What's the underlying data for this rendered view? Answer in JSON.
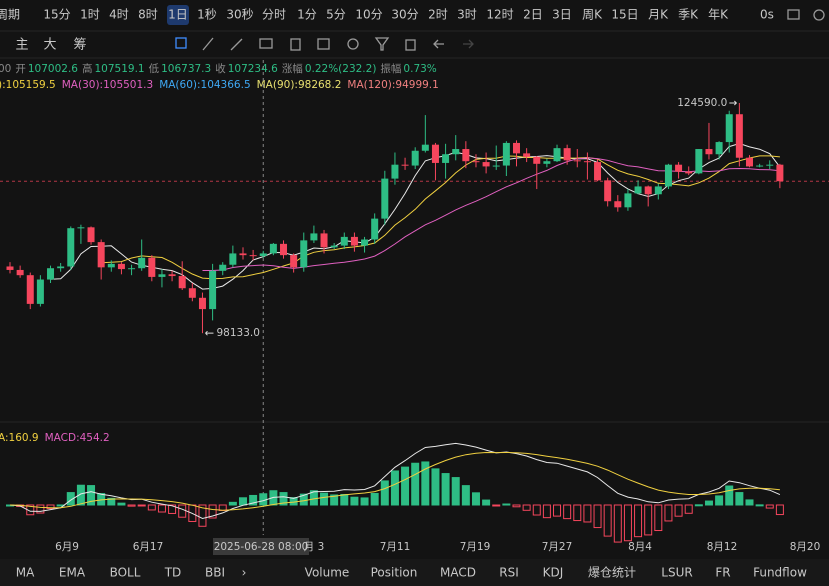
{
  "toolbar": {
    "periods": [
      "周期",
      "15分",
      "1时",
      "4时",
      "8时",
      "1日",
      "1秒",
      "30秒",
      "分时",
      "1分",
      "5分",
      "10分",
      "30分",
      "2时",
      "3时",
      "12时",
      "2日",
      "3日",
      "周K",
      "15日",
      "月K",
      "季K",
      "年K"
    ],
    "selected": 5,
    "timer": "0s"
  },
  "tools": [
    "主",
    "大",
    "筹"
  ],
  "info": {
    "prefix": "00",
    "items": [
      {
        "label": "开",
        "value": "107002.6"
      },
      {
        "label": "高",
        "value": "107519.1"
      },
      {
        "label": "低",
        "value": "106737.3"
      },
      {
        "label": "收",
        "value": "107234.6"
      },
      {
        "label": "涨幅",
        "value": "0.22%(232.2)"
      },
      {
        "label": "振幅",
        "value": "0.73%"
      }
    ]
  },
  "ma_legend": [
    {
      "text": "):105159.5",
      "color": "#f0d040"
    },
    {
      "text": "MA(30):105501.3",
      "color": "#e060c0"
    },
    {
      "text": "MA(60):104366.5",
      "color": "#3fa9f5"
    },
    {
      "text": "MA(90):98268.2",
      "color": "#e8e070"
    },
    {
      "text": "MA(120):94999.1",
      "color": "#f08080"
    }
  ],
  "annotations": {
    "high": "124590.0",
    "low": "98133.0"
  },
  "macd_legend": [
    {
      "text": "A:160.9",
      "color": "#f0d040"
    },
    {
      "text": "MACD:454.2",
      "color": "#e060c0"
    }
  ],
  "x_labels": [
    "6月9",
    "6月17",
    "2025-06-28 08:00",
    "月 3",
    "7月11",
    "7月19",
    "7月27",
    "8月4",
    "8月12",
    "8月20"
  ],
  "tabs": {
    "items": [
      "MA",
      "EMA",
      "BOLL",
      "TD",
      "BBI",
      "›",
      "Volume",
      "Position",
      "MACD",
      "RSI",
      "KDJ",
      "爆仓统计",
      "LSUR",
      "FR",
      "Fundflow"
    ],
    "selected": [
      0,
      8
    ]
  },
  "candles": {
    "up_color": "#2ebd85",
    "down_color": "#f6465d",
    "values": [
      [
        105800,
        106300,
        105000,
        105400
      ],
      [
        105400,
        105900,
        104500,
        104800
      ],
      [
        104800,
        105100,
        100900,
        101500
      ],
      [
        101500,
        104800,
        101200,
        104300
      ],
      [
        104300,
        105900,
        103900,
        105600
      ],
      [
        105600,
        106200,
        105200,
        105800
      ],
      [
        105800,
        110400,
        105400,
        110200
      ],
      [
        110200,
        110600,
        108400,
        110300
      ],
      [
        110300,
        110400,
        108300,
        108600
      ],
      [
        108600,
        108900,
        104300,
        105700
      ],
      [
        105700,
        106500,
        105200,
        106100
      ],
      [
        106100,
        106300,
        104900,
        105500
      ],
      [
        105500,
        106000,
        104800,
        105600
      ],
      [
        105600,
        108900,
        105300,
        106800
      ],
      [
        106800,
        107100,
        104100,
        104600
      ],
      [
        104600,
        105500,
        103400,
        104900
      ],
      [
        104900,
        105300,
        104100,
        104700
      ],
      [
        104700,
        106400,
        103100,
        103300
      ],
      [
        103300,
        103900,
        101800,
        102200
      ],
      [
        102200,
        102800,
        98133,
        100900
      ],
      [
        100900,
        106100,
        99600,
        105300
      ],
      [
        105300,
        106300,
        104800,
        106000
      ],
      [
        106000,
        108200,
        105700,
        107300
      ],
      [
        107300,
        108000,
        106600,
        107100
      ],
      [
        107100,
        107700,
        106500,
        107000
      ],
      [
        107000,
        107600,
        106800,
        107300
      ],
      [
        107300,
        108500,
        107100,
        108400
      ],
      [
        108400,
        108800,
        106700,
        107100
      ],
      [
        107100,
        107300,
        105100,
        105700
      ],
      [
        105700,
        109700,
        105200,
        108800
      ],
      [
        108800,
        110500,
        108500,
        109600
      ],
      [
        109600,
        110000,
        107300,
        108000
      ],
      [
        108000,
        108500,
        107800,
        108200
      ],
      [
        108200,
        109700,
        107800,
        109200
      ],
      [
        109200,
        109700,
        107500,
        108200
      ],
      [
        108200,
        109200,
        107400,
        108900
      ],
      [
        108900,
        111900,
        108400,
        111300
      ],
      [
        111300,
        116800,
        110600,
        115900
      ],
      [
        115900,
        118900,
        115200,
        117500
      ],
      [
        117500,
        118300,
        116900,
        117400
      ],
      [
        117400,
        119500,
        117000,
        119100
      ],
      [
        119100,
        123200,
        118900,
        119800
      ],
      [
        119800,
        120000,
        115700,
        117700
      ],
      [
        117700,
        119900,
        115900,
        118700
      ],
      [
        118700,
        120900,
        118000,
        119300
      ],
      [
        119300,
        120200,
        117100,
        117900
      ],
      [
        117900,
        118700,
        117200,
        117800
      ],
      [
        117800,
        118900,
        116500,
        117300
      ],
      [
        117300,
        119700,
        116900,
        117400
      ],
      [
        117400,
        120200,
        116200,
        120000
      ],
      [
        120000,
        120300,
        117300,
        118800
      ],
      [
        118800,
        119400,
        117800,
        118400
      ],
      [
        118400,
        118500,
        114700,
        117600
      ],
      [
        117600,
        118200,
        117200,
        117900
      ],
      [
        117900,
        119800,
        117800,
        119400
      ],
      [
        119400,
        119800,
        117500,
        118000
      ],
      [
        118000,
        119300,
        117200,
        117900
      ],
      [
        117900,
        118900,
        115800,
        117800
      ],
      [
        117800,
        118100,
        115600,
        115700
      ],
      [
        115700,
        116000,
        112700,
        113300
      ],
      [
        113300,
        114000,
        112100,
        112600
      ],
      [
        112600,
        114700,
        112200,
        114200
      ],
      [
        114200,
        115700,
        114100,
        115000
      ],
      [
        115000,
        115100,
        112700,
        114100
      ],
      [
        114100,
        115300,
        113500,
        115000
      ],
      [
        115000,
        117600,
        114700,
        117500
      ],
      [
        117500,
        117800,
        115900,
        116700
      ],
      [
        116700,
        117300,
        116300,
        116500
      ],
      [
        116500,
        119300,
        116400,
        119300
      ],
      [
        119300,
        122300,
        118100,
        118700
      ],
      [
        118700,
        120200,
        118100,
        120100
      ],
      [
        120100,
        123700,
        118900,
        123300
      ],
      [
        123300,
        124590,
        117300,
        118300
      ],
      [
        118300,
        118600,
        117200,
        117300
      ],
      [
        117300,
        117600,
        117200,
        117400
      ],
      [
        117400,
        118000,
        117000,
        117500
      ],
      [
        117500,
        117600,
        114800,
        115600
      ]
    ]
  }
}
